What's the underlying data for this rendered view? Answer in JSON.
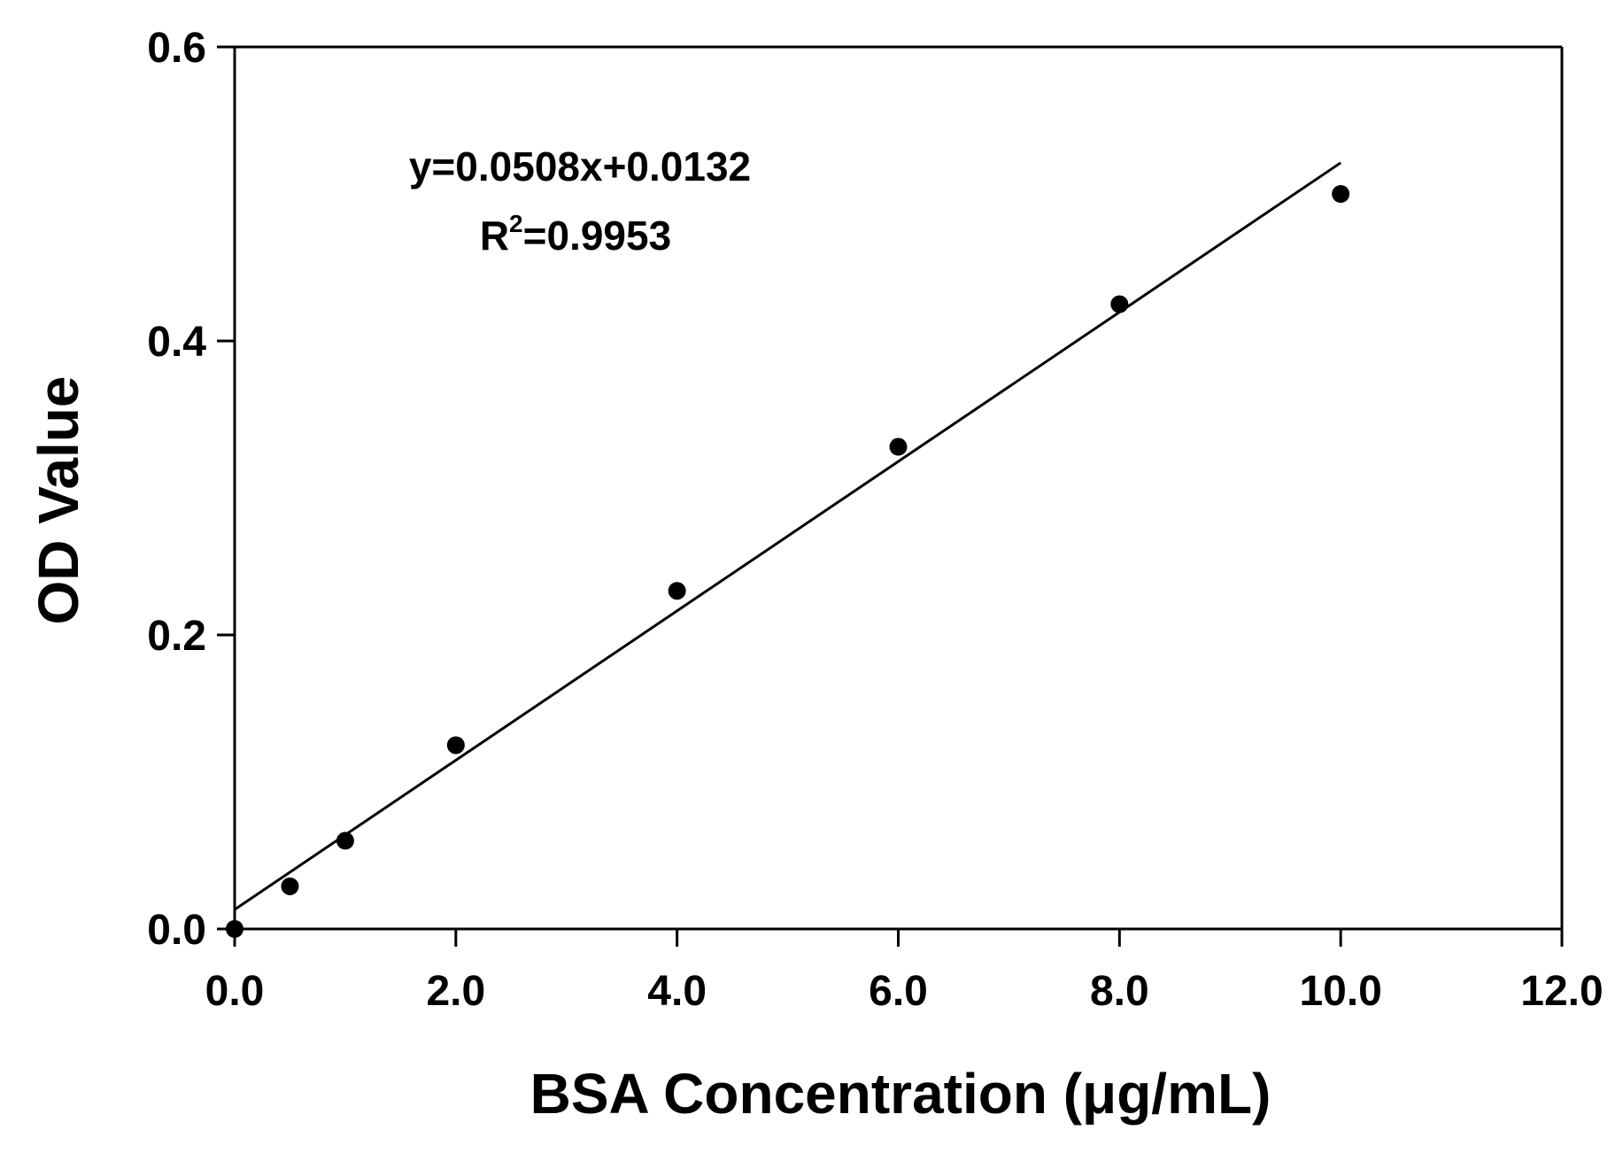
{
  "chart_data": {
    "type": "scatter",
    "title": "",
    "xlabel": "BSA  Concentration (μg/mL)",
    "ylabel": "OD Value",
    "xlim": [
      0,
      12
    ],
    "ylim": [
      0,
      0.6
    ],
    "x_ticks": [
      "0.0",
      "2.0",
      "4.0",
      "6.0",
      "8.0",
      "10.0",
      "12.0"
    ],
    "y_ticks": [
      "0.0",
      "0.2",
      "0.4",
      "0.6"
    ],
    "grid": false,
    "legend": "none",
    "series": [
      {
        "points": [
          {
            "x": 0.0,
            "y": 0.0
          },
          {
            "x": 0.5,
            "y": 0.029
          },
          {
            "x": 1.0,
            "y": 0.06
          },
          {
            "x": 2.0,
            "y": 0.125
          },
          {
            "x": 4.0,
            "y": 0.23
          },
          {
            "x": 6.0,
            "y": 0.328
          },
          {
            "x": 8.0,
            "y": 0.425
          },
          {
            "x": 10.0,
            "y": 0.5
          }
        ],
        "color": "#000000"
      }
    ],
    "fit_line": {
      "slope": 0.0508,
      "intercept": 0.0132,
      "x_range": [
        0,
        10
      ],
      "color": "#000000"
    },
    "annotations": {
      "equation": "y=0.0508x+0.0132",
      "r2_prefix": "R",
      "r2_sup": "2",
      "r2_value": "=0.9953"
    }
  }
}
